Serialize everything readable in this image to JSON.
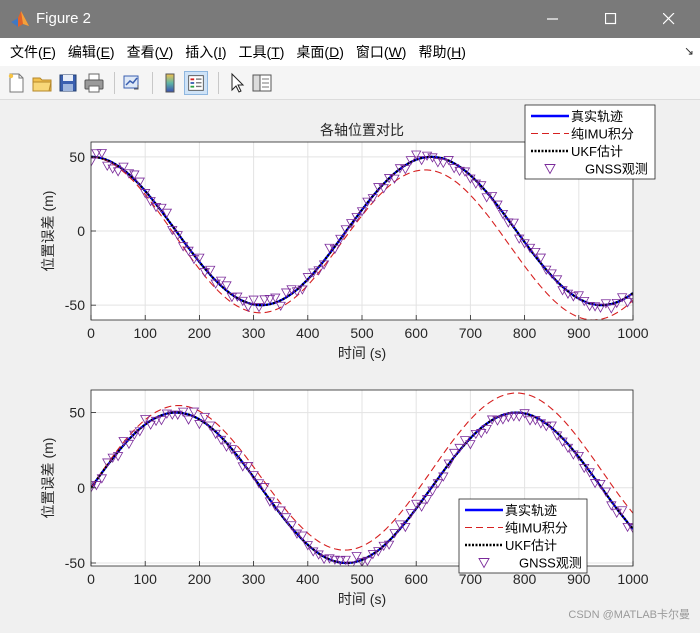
{
  "window": {
    "title": "Figure 2"
  },
  "menu": [
    {
      "label": "文件(",
      "key": "F",
      "tail": ")"
    },
    {
      "label": "编辑(",
      "key": "E",
      "tail": ")"
    },
    {
      "label": "查看(",
      "key": "V",
      "tail": ")"
    },
    {
      "label": "插入(",
      "key": "I",
      "tail": ")"
    },
    {
      "label": "工具(",
      "key": "T",
      "tail": ")"
    },
    {
      "label": "桌面(",
      "key": "D",
      "tail": ")"
    },
    {
      "label": "窗口(",
      "key": "W",
      "tail": ")"
    },
    {
      "label": "帮助(",
      "key": "H",
      "tail": ")"
    }
  ],
  "toolbar_icons": [
    "new-figure-icon",
    "open-icon",
    "save-icon",
    "print-icon",
    "link-plot-icon",
    "colorbar-icon",
    "legend-icon",
    "pointer-icon",
    "property-inspector-icon"
  ],
  "colors": {
    "true": "#0000ff",
    "imu": "#d62020",
    "ukf": "#000000",
    "gnss": "#7a2a9a"
  },
  "watermark": "CSDN @MATLAB卡尔曼",
  "chart_data": [
    {
      "type": "line",
      "title": "各轴位置对比",
      "xlabel": "时间 (s)",
      "ylabel": "位置误差 (m)",
      "xlim": [
        0,
        1000
      ],
      "ylim": [
        -60,
        60
      ],
      "xticks": [
        "0",
        "100",
        "200",
        "300",
        "400",
        "500",
        "600",
        "700",
        "800",
        "900",
        "1000"
      ],
      "yticks": [
        "50",
        "0",
        "-50"
      ],
      "grid": true,
      "legend_position": "top-right",
      "series": [
        {
          "name": "真实轨迹",
          "model": {
            "amp": 50,
            "period": 628,
            "phase": 1.5708,
            "drift_amp": 0,
            "drift_period": 1
          }
        },
        {
          "name": "纯IMU积分",
          "model": {
            "amp": 50,
            "period": 618,
            "phase": 1.5708,
            "drift_amp": -10,
            "drift_period": 1800
          }
        },
        {
          "name": "UKF估计",
          "model": {
            "amp": 50,
            "period": 628,
            "phase": 1.5708,
            "drift_amp": 0,
            "drift_period": 1
          }
        },
        {
          "name": "GNSS观测",
          "marker": "triangle-down"
        }
      ]
    },
    {
      "type": "line",
      "title": "",
      "xlabel": "时间 (s)",
      "ylabel": "位置误差 (m)",
      "xlim": [
        0,
        1000
      ],
      "ylim": [
        -52,
        65
      ],
      "xticks": [
        "0",
        "100",
        "200",
        "300",
        "400",
        "500",
        "600",
        "700",
        "800",
        "900",
        "1000"
      ],
      "yticks": [
        "50",
        "0",
        "-50"
      ],
      "grid": true,
      "legend_position": "bottom-right",
      "series": [
        {
          "name": "真实轨迹",
          "model": {
            "amp": 50,
            "period": 628,
            "phase": 0,
            "drift_amp": 0,
            "drift_period": 1
          }
        },
        {
          "name": "纯IMU积分",
          "model": {
            "amp": 51,
            "period": 628,
            "phase": 0,
            "drift_amp": 12,
            "drift_period": 1600
          }
        },
        {
          "name": "UKF估计",
          "model": {
            "amp": 50,
            "period": 628,
            "phase": 0,
            "drift_amp": 0,
            "drift_period": 1
          }
        },
        {
          "name": "GNSS观测",
          "marker": "triangle-down"
        }
      ]
    }
  ]
}
